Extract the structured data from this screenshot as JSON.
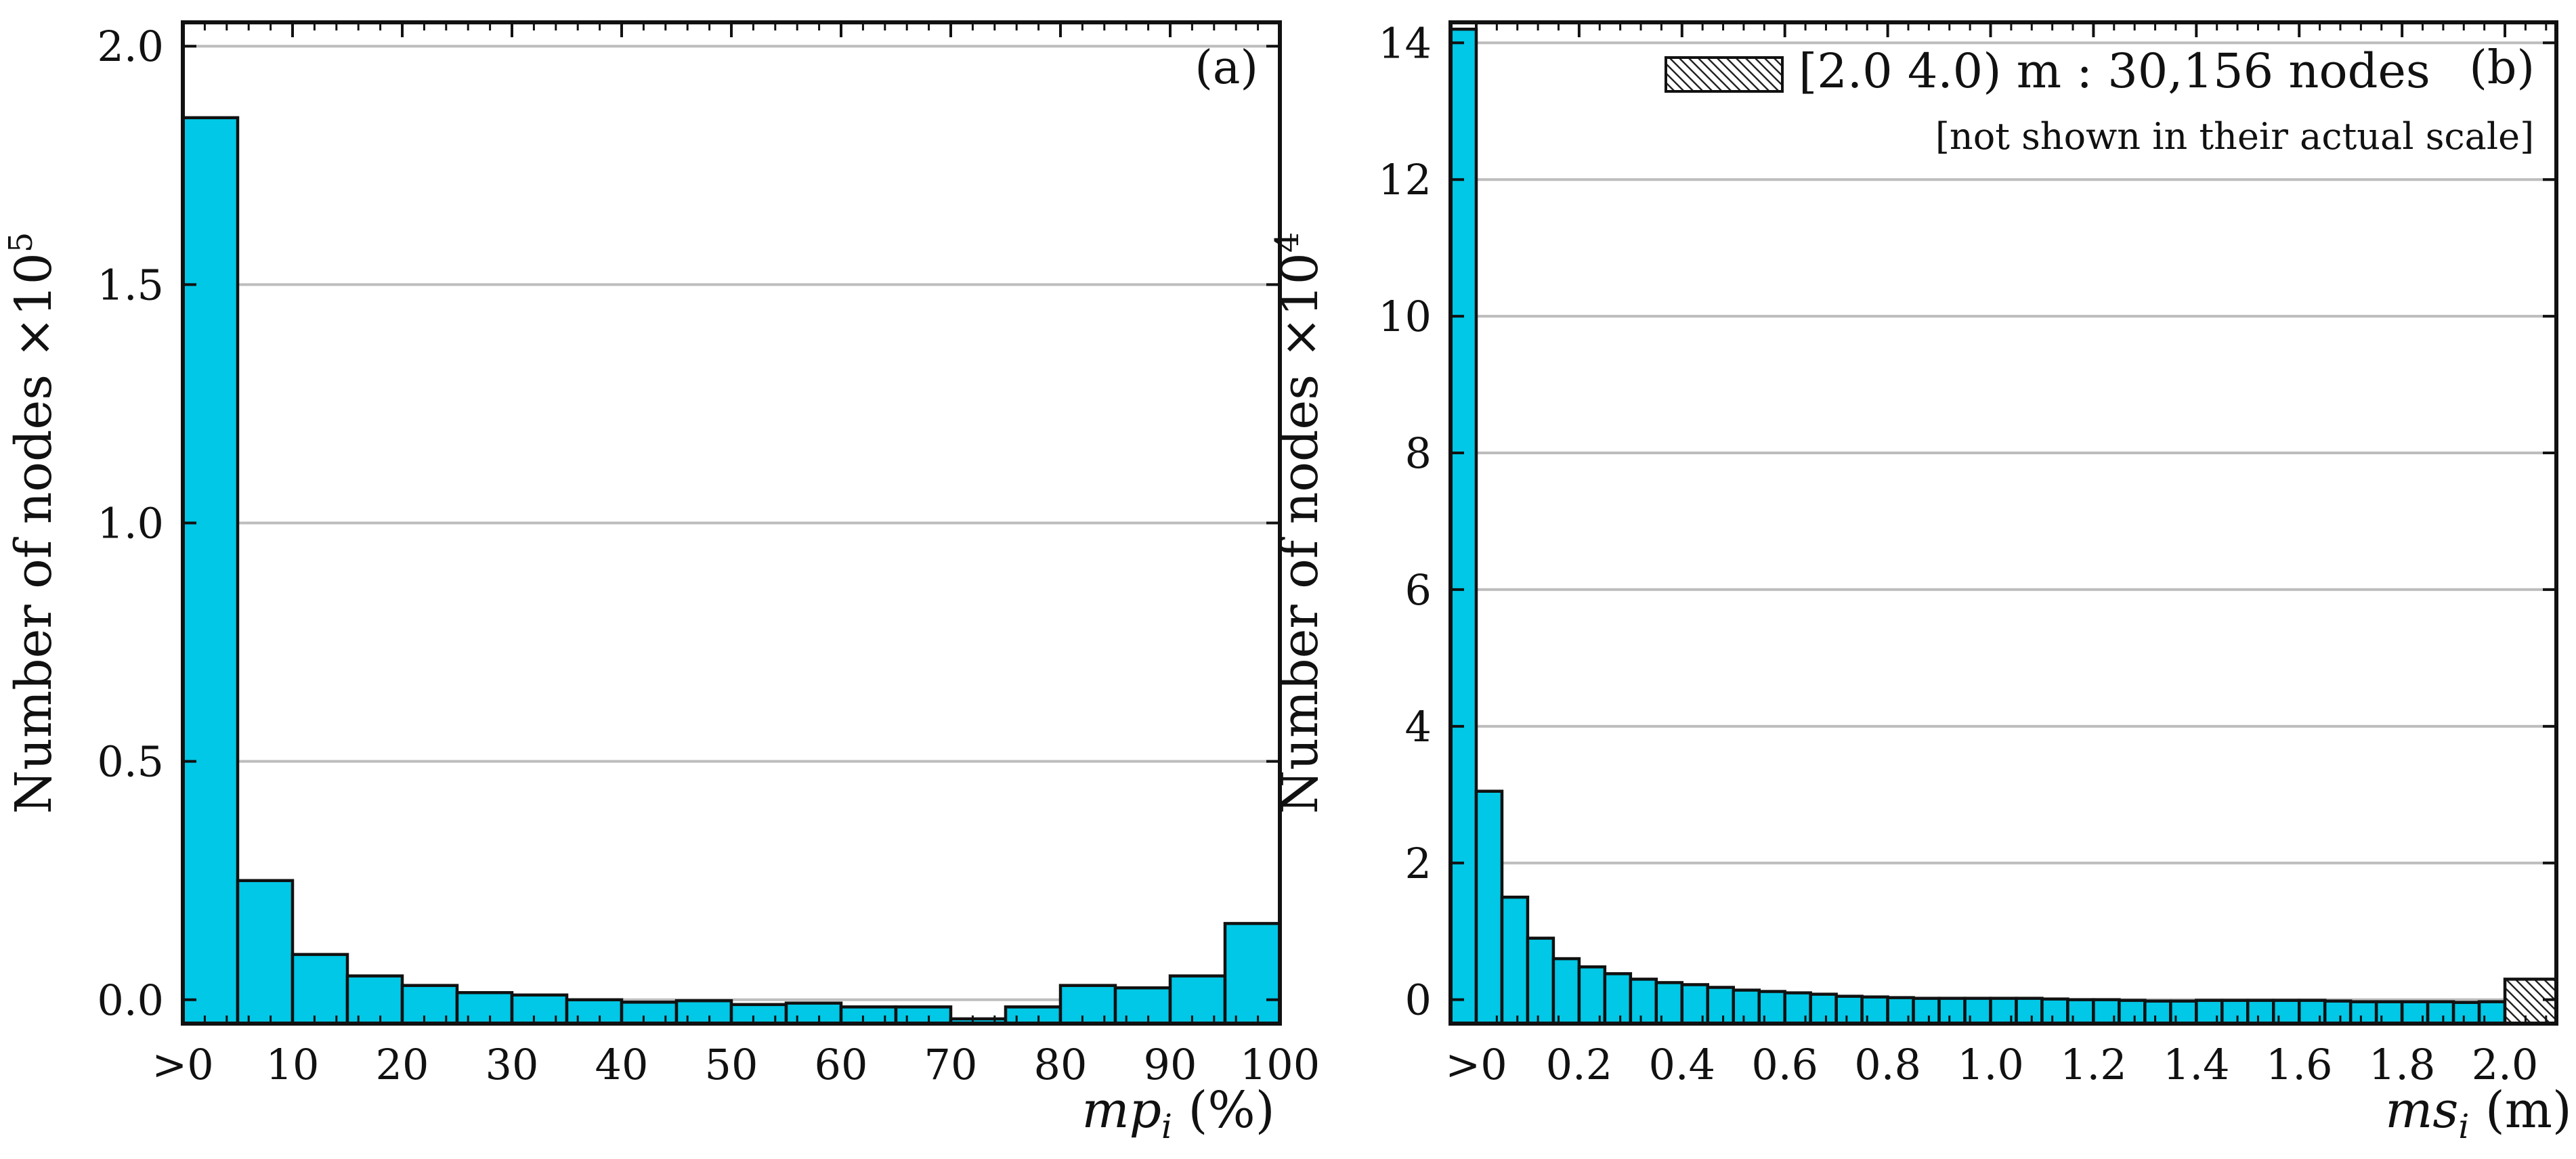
{
  "chart_data": [
    {
      "type": "bar",
      "panel_label": "(a)",
      "ylabel": "Number of nodes ×10",
      "ylabel_exponent": "5",
      "xlabel_main": "mp",
      "xlabel_sub": "i",
      "xlabel_unit": " (%)",
      "ylim": [
        -0.05,
        2.05
      ],
      "yticks": [
        "0.0",
        "0.5",
        "1.0",
        "1.5",
        "2.0"
      ],
      "ytick_values": [
        0,
        0.5,
        1.0,
        1.5,
        2.0
      ],
      "xlim": [
        0,
        100
      ],
      "xticks": [
        ">0",
        "10",
        "20",
        "30",
        "40",
        "50",
        "60",
        "70",
        "80",
        "90",
        "100"
      ],
      "xtick_values": [
        0,
        10,
        20,
        30,
        40,
        50,
        60,
        70,
        80,
        90,
        100
      ],
      "bin_edges": [
        0,
        5,
        10,
        15,
        20,
        25,
        30,
        35,
        40,
        45,
        50,
        55,
        60,
        65,
        70,
        75,
        80,
        85,
        90,
        95,
        100
      ],
      "values": [
        1.85,
        0.25,
        0.095,
        0.05,
        0.03,
        0.015,
        0.01,
        0.0,
        -0.005,
        -0.002,
        -0.01,
        -0.007,
        -0.015,
        -0.015,
        -0.04,
        -0.015,
        0.03,
        0.025,
        0.05,
        0.16
      ],
      "grid": "horizontal",
      "colors": {
        "bar": "#00c8e6",
        "edge": "#111111",
        "grid": "#bdbdbd"
      }
    },
    {
      "type": "bar",
      "panel_label": "(b)",
      "ylabel": "Number of nodes ×10",
      "ylabel_exponent": "4",
      "xlabel_main": "ms",
      "xlabel_sub": "i",
      "xlabel_unit": " (m)",
      "ylim": [
        -0.35,
        14.3
      ],
      "yticks": [
        "0",
        "2",
        "4",
        "6",
        "8",
        "10",
        "12",
        "14"
      ],
      "ytick_values": [
        0,
        2,
        4,
        6,
        8,
        10,
        12,
        14
      ],
      "xlim": [
        -0.05,
        2.1
      ],
      "xticks": [
        ">0",
        "0.2",
        "0.4",
        "0.6",
        "0.8",
        "1.0",
        "1.2",
        "1.4",
        "1.6",
        "1.8",
        "2.0"
      ],
      "xtick_values": [
        0,
        0.2,
        0.4,
        0.6,
        0.8,
        1.0,
        1.2,
        1.4,
        1.6,
        1.8,
        2.0
      ],
      "bin_edges": [
        -0.05,
        0,
        0.05,
        0.1,
        0.15,
        0.2,
        0.25,
        0.3,
        0.35,
        0.4,
        0.45,
        0.5,
        0.55,
        0.6,
        0.65,
        0.7,
        0.75,
        0.8,
        0.85,
        0.9,
        0.95,
        1.0,
        1.05,
        1.1,
        1.15,
        1.2,
        1.25,
        1.3,
        1.35,
        1.4,
        1.45,
        1.5,
        1.55,
        1.6,
        1.65,
        1.7,
        1.75,
        1.8,
        1.85,
        1.9,
        1.95,
        2.0
      ],
      "values": [
        14.2,
        3.05,
        1.5,
        0.9,
        0.6,
        0.48,
        0.38,
        0.3,
        0.25,
        0.22,
        0.18,
        0.14,
        0.12,
        0.1,
        0.08,
        0.05,
        0.04,
        0.03,
        0.02,
        0.02,
        0.02,
        0.02,
        0.02,
        0.01,
        0.0,
        0.0,
        -0.01,
        -0.02,
        -0.02,
        -0.01,
        -0.01,
        -0.01,
        -0.01,
        -0.01,
        -0.02,
        -0.03,
        -0.03,
        -0.03,
        -0.03,
        -0.04,
        -0.03
      ],
      "hatched_bin": {
        "from": 2.0,
        "to": 2.1,
        "value": 0.3
      },
      "legend": {
        "label": "[2.0 4.0) m : 30,156 nodes",
        "note": "[not shown in their actual scale]",
        "placement": "top-right"
      },
      "grid": "horizontal",
      "colors": {
        "bar": "#00c8e6",
        "edge": "#111111",
        "grid": "#bdbdbd"
      }
    }
  ]
}
